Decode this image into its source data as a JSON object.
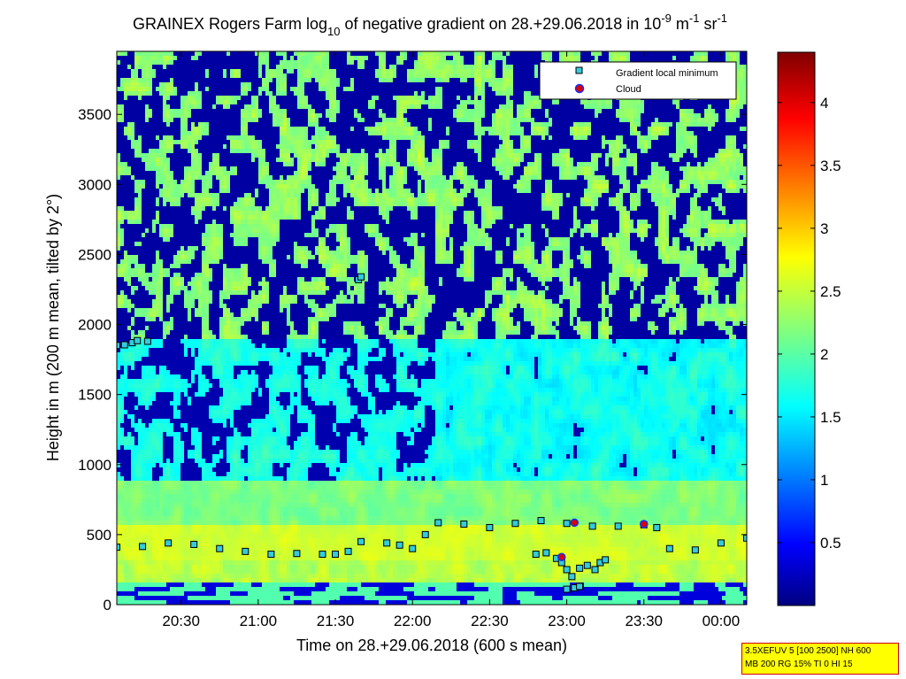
{
  "chart_data": {
    "type": "heatmap",
    "title_parts": [
      "GRAINEX Rogers Farm log",
      "10",
      " of negative gradient on 28.+29.06.2018 in 10",
      "-9",
      " m",
      "-1",
      " sr",
      "-1"
    ],
    "xlabel": "Time on 28.+29.06.2018 (600 s mean)",
    "ylabel": "Height in m (200 m mean, tilted by 2°)",
    "x_range": [
      "20:05",
      "00:10"
    ],
    "x_ticks": [
      "20:30",
      "21:00",
      "21:30",
      "22:00",
      "22:30",
      "23:00",
      "23:30",
      "00:00"
    ],
    "y_range": [
      0,
      3950
    ],
    "y_ticks": [
      0,
      500,
      1000,
      1500,
      2000,
      2500,
      3000,
      3500
    ],
    "colorbar": {
      "colormap": "jet",
      "range": [
        0,
        4.4
      ],
      "ticks": [
        "0.5",
        "1",
        "1.5",
        "2",
        "2.5",
        "3",
        "3.5",
        "4"
      ]
    },
    "legend": {
      "position": "top-right",
      "entries": [
        {
          "label": "Gradient local minimum",
          "marker": "square",
          "color": "#33ccdd"
        },
        {
          "label": "Cloud",
          "marker": "circle",
          "color": "#dd0000"
        }
      ]
    },
    "series": [
      {
        "marker": "square",
        "points": [
          [
            "20:05",
            410
          ],
          [
            "20:15",
            415
          ],
          [
            "20:25",
            440
          ],
          [
            "20:35",
            430
          ],
          [
            "20:45",
            400
          ],
          [
            "20:55",
            380
          ],
          [
            "21:05",
            360
          ],
          [
            "21:15",
            365
          ],
          [
            "21:25",
            360
          ],
          [
            "21:30",
            360
          ],
          [
            "21:35",
            380
          ],
          [
            "21:40",
            450
          ],
          [
            "21:50",
            440
          ],
          [
            "21:55",
            425
          ],
          [
            "22:00",
            400
          ],
          [
            "22:05",
            500
          ],
          [
            "22:10",
            585
          ],
          [
            "22:20",
            575
          ],
          [
            "22:30",
            550
          ],
          [
            "22:40",
            580
          ],
          [
            "22:50",
            600
          ],
          [
            "23:00",
            580
          ],
          [
            "23:10",
            560
          ],
          [
            "23:20",
            560
          ],
          [
            "23:30",
            570
          ],
          [
            "23:35",
            550
          ],
          [
            "23:40",
            400
          ],
          [
            "23:50",
            390
          ],
          [
            "00:00",
            440
          ],
          [
            "00:10",
            475
          ]
        ]
      },
      {
        "marker": "square",
        "points": [
          [
            "20:05",
            1850
          ],
          [
            "20:08",
            1855
          ],
          [
            "20:11",
            1870
          ],
          [
            "20:13",
            1885
          ],
          [
            "20:17",
            1880
          ],
          [
            "21:39",
            2320
          ],
          [
            "21:40",
            2340
          ],
          [
            "22:48",
            360
          ],
          [
            "22:52",
            370
          ],
          [
            "22:56",
            330
          ],
          [
            "22:58",
            300
          ],
          [
            "23:00",
            250
          ],
          [
            "23:02",
            200
          ],
          [
            "23:05",
            260
          ],
          [
            "23:08",
            280
          ],
          [
            "23:11",
            250
          ],
          [
            "23:13",
            300
          ],
          [
            "23:15",
            320
          ],
          [
            "23:00",
            110
          ],
          [
            "23:03",
            120
          ],
          [
            "23:05",
            130
          ]
        ]
      },
      {
        "name": "Cloud",
        "marker": "circle",
        "points": [
          [
            "22:58",
            340
          ],
          [
            "23:03",
            585
          ],
          [
            "23:30",
            575
          ]
        ]
      }
    ],
    "info_box": [
      "3.5XEFUV 5 [100 2500] NH 600",
      "MB 200 RG 15% TI 0 HI 15"
    ]
  }
}
